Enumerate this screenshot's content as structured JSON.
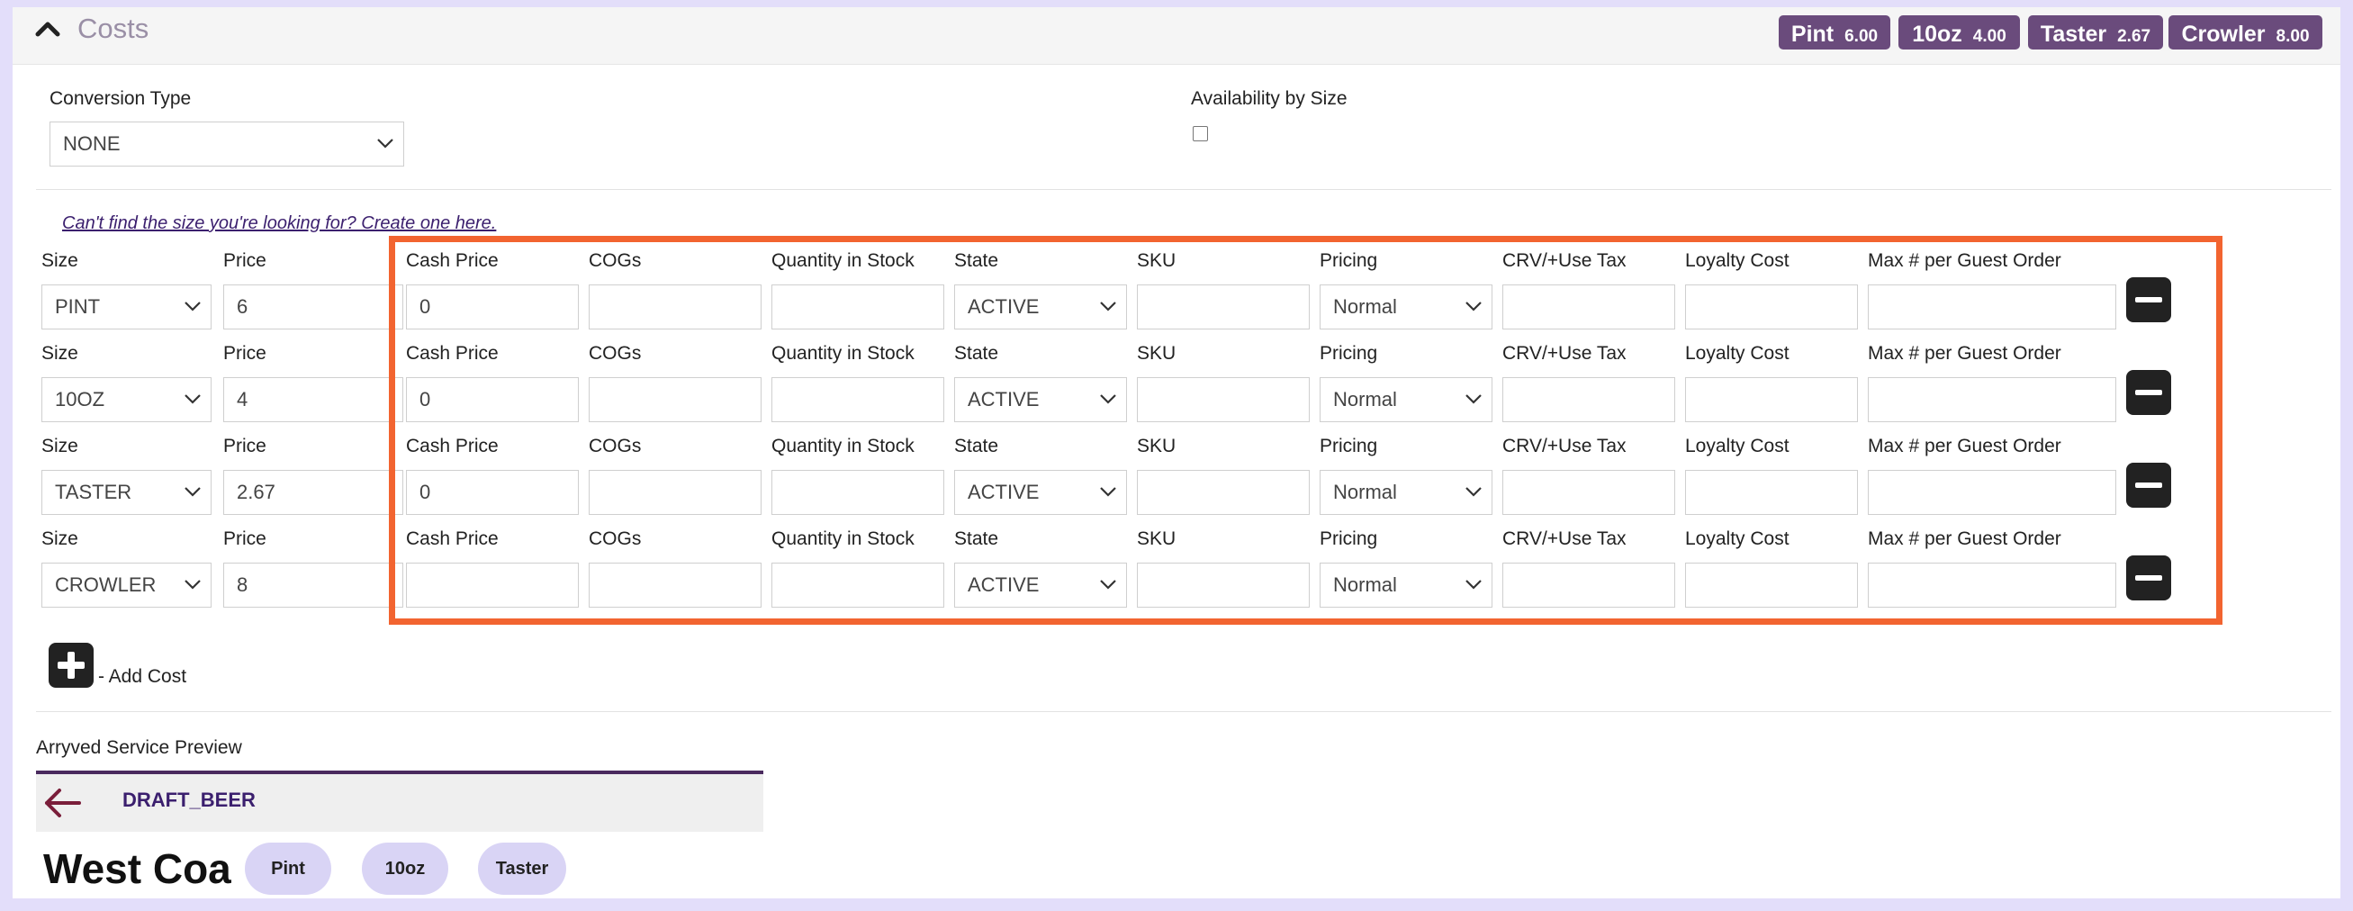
{
  "section": {
    "title": "Costs",
    "collapse_icon": "chevron-up-icon"
  },
  "badges": [
    {
      "name": "Pint",
      "value": "6.00"
    },
    {
      "name": "10oz",
      "value": "4.00"
    },
    {
      "name": "Taster",
      "value": "2.67"
    },
    {
      "name": "Crowler",
      "value": "8.00"
    }
  ],
  "conversion": {
    "label": "Conversion Type",
    "value": "NONE"
  },
  "availability": {
    "label": "Availability by Size",
    "checked": false
  },
  "create_link": "Can't find the size you're looking for? Create one here.",
  "columns": {
    "size": "Size",
    "price": "Price",
    "cash_price": "Cash Price",
    "cogs": "COGs",
    "qty": "Quantity in Stock",
    "state": "State",
    "sku": "SKU",
    "pricing": "Pricing",
    "crv": "CRV/+Use Tax",
    "loyalty": "Loyalty Cost",
    "max": "Max # per Guest Order"
  },
  "rows": [
    {
      "size": "PINT",
      "price": "6",
      "cash_price": "0",
      "cogs": "",
      "qty": "",
      "state": "ACTIVE",
      "sku": "",
      "pricing": "Normal",
      "crv": "",
      "loyalty": "",
      "max": ""
    },
    {
      "size": "10OZ",
      "price": "4",
      "cash_price": "0",
      "cogs": "",
      "qty": "",
      "state": "ACTIVE",
      "sku": "",
      "pricing": "Normal",
      "crv": "",
      "loyalty": "",
      "max": ""
    },
    {
      "size": "TASTER",
      "price": "2.67",
      "cash_price": "0",
      "cogs": "",
      "qty": "",
      "state": "ACTIVE",
      "sku": "",
      "pricing": "Normal",
      "crv": "",
      "loyalty": "",
      "max": ""
    },
    {
      "size": "CROWLER",
      "price": "8",
      "cash_price": "",
      "cogs": "",
      "qty": "",
      "state": "ACTIVE",
      "sku": "",
      "pricing": "Normal",
      "crv": "",
      "loyalty": "",
      "max": ""
    }
  ],
  "add_cost_label": "- Add Cost",
  "preview": {
    "label": "Arryved Service Preview",
    "category": "DRAFT_BEER",
    "item_name": "West Coast",
    "sizes": [
      "Pint",
      "10oz",
      "Taster"
    ]
  },
  "colors": {
    "badge": "#6a4b7c",
    "highlight": "#f26430",
    "pill": "#d9d4f5",
    "accent": "#3b1f6e"
  }
}
